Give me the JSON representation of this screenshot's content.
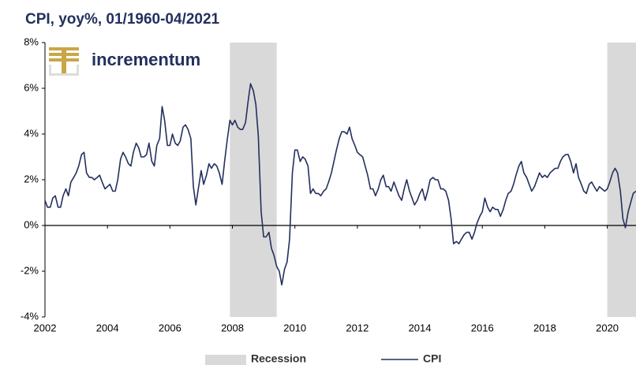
{
  "chart_data": {
    "type": "line",
    "title": "CPI, yoy%, 01/1960-04/2021",
    "logo": "incrementum",
    "xlim": [
      2002,
      2020.92
    ],
    "xticks": [
      2002,
      2004,
      2006,
      2008,
      2010,
      2012,
      2014,
      2016,
      2018,
      2020
    ],
    "ylim": [
      -4,
      8
    ],
    "yticks": [
      {
        "value": -4,
        "label": "-4%"
      },
      {
        "value": -2,
        "label": "-2%"
      },
      {
        "value": 0,
        "label": "0%"
      },
      {
        "value": 2,
        "label": "2%"
      },
      {
        "value": 4,
        "label": "4%"
      },
      {
        "value": 6,
        "label": "6%"
      },
      {
        "value": 8,
        "label": "8%"
      }
    ],
    "recession_name": "Recession",
    "recession_color": "#d9d9d9",
    "recessions": [
      [
        2007.92,
        2009.42
      ],
      [
        2020.0,
        2020.92
      ]
    ],
    "x": [
      2002.0,
      2002.08,
      2002.17,
      2002.25,
      2002.33,
      2002.42,
      2002.5,
      2002.58,
      2002.67,
      2002.75,
      2002.83,
      2002.92,
      2003.0,
      2003.08,
      2003.17,
      2003.25,
      2003.33,
      2003.42,
      2003.5,
      2003.58,
      2003.67,
      2003.75,
      2003.83,
      2003.92,
      2004.0,
      2004.08,
      2004.17,
      2004.25,
      2004.33,
      2004.42,
      2004.5,
      2004.58,
      2004.67,
      2004.75,
      2004.83,
      2004.92,
      2005.0,
      2005.08,
      2005.17,
      2005.25,
      2005.33,
      2005.42,
      2005.5,
      2005.58,
      2005.67,
      2005.75,
      2005.83,
      2005.92,
      2006.0,
      2006.08,
      2006.17,
      2006.25,
      2006.33,
      2006.42,
      2006.5,
      2006.58,
      2006.67,
      2006.75,
      2006.83,
      2006.92,
      2007.0,
      2007.08,
      2007.17,
      2007.25,
      2007.33,
      2007.42,
      2007.5,
      2007.58,
      2007.67,
      2007.75,
      2007.83,
      2007.92,
      2008.0,
      2008.08,
      2008.17,
      2008.25,
      2008.33,
      2008.42,
      2008.5,
      2008.58,
      2008.67,
      2008.75,
      2008.83,
      2008.92,
      2009.0,
      2009.08,
      2009.17,
      2009.25,
      2009.33,
      2009.42,
      2009.5,
      2009.58,
      2009.67,
      2009.75,
      2009.83,
      2009.92,
      2010.0,
      2010.08,
      2010.17,
      2010.25,
      2010.33,
      2010.42,
      2010.5,
      2010.58,
      2010.67,
      2010.75,
      2010.83,
      2010.92,
      2011.0,
      2011.08,
      2011.17,
      2011.25,
      2011.33,
      2011.42,
      2011.5,
      2011.58,
      2011.67,
      2011.75,
      2011.83,
      2011.92,
      2012.0,
      2012.08,
      2012.17,
      2012.25,
      2012.33,
      2012.42,
      2012.5,
      2012.58,
      2012.67,
      2012.75,
      2012.83,
      2012.92,
      2013.0,
      2013.08,
      2013.17,
      2013.25,
      2013.33,
      2013.42,
      2013.5,
      2013.58,
      2013.67,
      2013.75,
      2013.83,
      2013.92,
      2014.0,
      2014.08,
      2014.17,
      2014.25,
      2014.33,
      2014.42,
      2014.5,
      2014.58,
      2014.67,
      2014.75,
      2014.83,
      2014.92,
      2015.0,
      2015.08,
      2015.17,
      2015.25,
      2015.33,
      2015.42,
      2015.5,
      2015.58,
      2015.67,
      2015.75,
      2015.83,
      2015.92,
      2016.0,
      2016.08,
      2016.17,
      2016.25,
      2016.33,
      2016.42,
      2016.5,
      2016.58,
      2016.67,
      2016.75,
      2016.83,
      2016.92,
      2017.0,
      2017.08,
      2017.17,
      2017.25,
      2017.33,
      2017.42,
      2017.5,
      2017.58,
      2017.67,
      2017.75,
      2017.83,
      2017.92,
      2018.0,
      2018.08,
      2018.17,
      2018.25,
      2018.33,
      2018.42,
      2018.5,
      2018.58,
      2018.67,
      2018.75,
      2018.83,
      2018.92,
      2019.0,
      2019.08,
      2019.17,
      2019.25,
      2019.33,
      2019.42,
      2019.5,
      2019.58,
      2019.67,
      2019.75,
      2019.83,
      2019.92,
      2020.0,
      2020.08,
      2020.17,
      2020.25,
      2020.33,
      2020.42,
      2020.5,
      2020.58,
      2020.67,
      2020.75,
      2020.83,
      2020.92
    ],
    "series": [
      {
        "name": "CPI",
        "color": "#23305e",
        "values": [
          1.1,
          0.8,
          0.8,
          1.2,
          1.3,
          0.8,
          0.8,
          1.3,
          1.6,
          1.3,
          1.9,
          2.1,
          2.3,
          2.6,
          3.1,
          3.2,
          2.3,
          2.1,
          2.1,
          2.0,
          2.1,
          2.2,
          1.9,
          1.6,
          1.7,
          1.8,
          1.5,
          1.5,
          2.0,
          2.9,
          3.2,
          3.0,
          2.7,
          2.6,
          3.2,
          3.6,
          3.4,
          3.0,
          3.0,
          3.1,
          3.6,
          2.8,
          2.6,
          3.5,
          3.8,
          5.2,
          4.6,
          3.5,
          3.5,
          4.0,
          3.6,
          3.5,
          3.7,
          4.3,
          4.4,
          4.2,
          3.8,
          1.7,
          0.9,
          1.7,
          2.4,
          1.8,
          2.2,
          2.7,
          2.5,
          2.7,
          2.6,
          2.3,
          1.8,
          2.8,
          3.7,
          4.6,
          4.4,
          4.6,
          4.3,
          4.2,
          4.2,
          4.5,
          5.4,
          6.2,
          5.9,
          5.3,
          3.9,
          0.6,
          -0.5,
          -0.5,
          -0.3,
          -1.0,
          -1.3,
          -1.8,
          -2.0,
          -2.6,
          -1.9,
          -1.6,
          -0.6,
          2.3,
          3.3,
          3.3,
          2.8,
          3.0,
          2.9,
          2.6,
          1.4,
          1.6,
          1.4,
          1.4,
          1.3,
          1.5,
          1.6,
          1.9,
          2.3,
          2.8,
          3.3,
          3.8,
          4.1,
          4.1,
          4.0,
          4.3,
          3.8,
          3.5,
          3.2,
          3.1,
          3.0,
          2.6,
          2.2,
          1.6,
          1.6,
          1.3,
          1.6,
          2.0,
          2.2,
          1.7,
          1.7,
          1.5,
          1.9,
          1.6,
          1.3,
          1.1,
          1.6,
          2.0,
          1.5,
          1.2,
          0.9,
          1.1,
          1.4,
          1.6,
          1.1,
          1.5,
          2.0,
          2.1,
          2.0,
          2.0,
          1.6,
          1.6,
          1.5,
          1.1,
          0.3,
          -0.8,
          -0.7,
          -0.8,
          -0.6,
          -0.4,
          -0.3,
          -0.3,
          -0.6,
          -0.3,
          0.1,
          0.4,
          0.6,
          1.2,
          0.8,
          0.6,
          0.8,
          0.7,
          0.7,
          0.4,
          0.7,
          1.1,
          1.4,
          1.5,
          1.8,
          2.2,
          2.6,
          2.8,
          2.3,
          2.1,
          1.8,
          1.5,
          1.7,
          2.0,
          2.3,
          2.1,
          2.2,
          2.1,
          2.3,
          2.4,
          2.5,
          2.5,
          2.8,
          3.0,
          3.1,
          3.1,
          2.8,
          2.3,
          2.7,
          2.1,
          1.8,
          1.5,
          1.4,
          1.8,
          1.9,
          1.7,
          1.5,
          1.7,
          1.6,
          1.5,
          1.6,
          1.9,
          2.3,
          2.5,
          2.3,
          1.5,
          0.3,
          -0.1,
          0.6,
          1.0,
          1.4,
          1.5
        ]
      }
    ]
  }
}
